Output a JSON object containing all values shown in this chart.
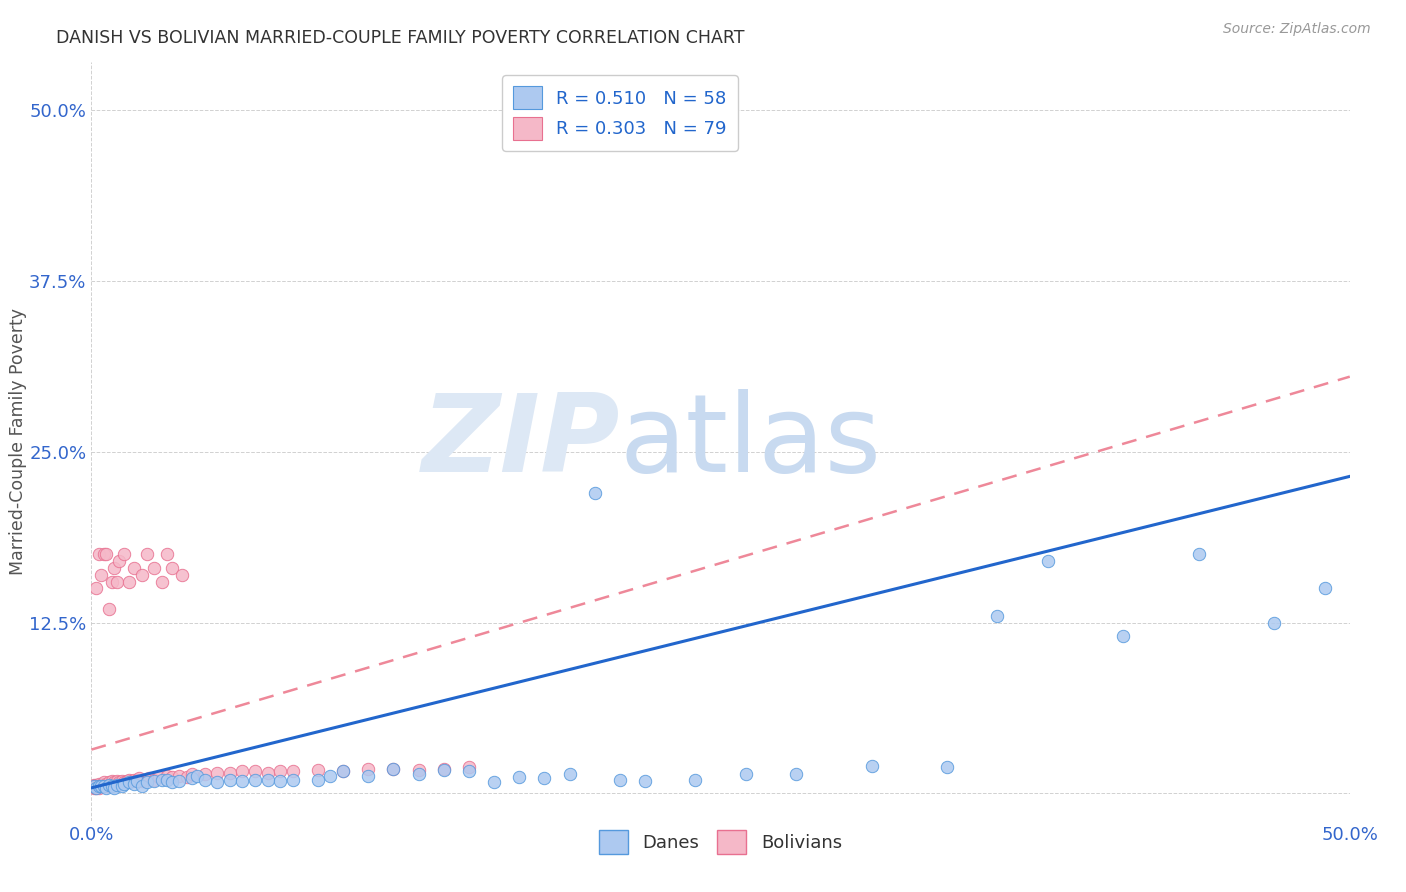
{
  "title": "DANISH VS BOLIVIAN MARRIED-COUPLE FAMILY POVERTY CORRELATION CHART",
  "source": "Source: ZipAtlas.com",
  "ylabel": "Married-Couple Family Poverty",
  "xlim": [
    0.0,
    0.5
  ],
  "ylim": [
    -0.02,
    0.535
  ],
  "danes_color": "#adc9f0",
  "bolivians_color": "#f5b8c8",
  "danes_edge_color": "#5599dd",
  "bolivians_edge_color": "#e87090",
  "danes_line_color": "#2266cc",
  "bolivians_line_color": "#ee8899",
  "background_color": "#ffffff",
  "title_color": "#333333",
  "tick_color": "#3366cc",
  "ylabel_color": "#555555",
  "watermark_zip_color": "#dde8f5",
  "watermark_atlas_color": "#c8daf0",
  "legend_label_color": "#2266cc",
  "legend_n_color": "#ee4466",
  "danes_line_start_y": 0.004,
  "danes_line_end_y": 0.232,
  "bolivians_line_start_y": 0.032,
  "bolivians_line_end_y": 0.305,
  "danes_x": [
    0.001,
    0.002,
    0.003,
    0.004,
    0.005,
    0.006,
    0.007,
    0.008,
    0.009,
    0.01,
    0.012,
    0.013,
    0.015,
    0.017,
    0.018,
    0.02,
    0.022,
    0.025,
    0.028,
    0.03,
    0.032,
    0.035,
    0.04,
    0.042,
    0.045,
    0.05,
    0.055,
    0.06,
    0.065,
    0.07,
    0.075,
    0.08,
    0.09,
    0.095,
    0.1,
    0.11,
    0.12,
    0.13,
    0.14,
    0.15,
    0.16,
    0.17,
    0.18,
    0.19,
    0.2,
    0.21,
    0.22,
    0.24,
    0.26,
    0.28,
    0.31,
    0.34,
    0.36,
    0.38,
    0.41,
    0.44,
    0.47,
    0.49
  ],
  "danes_y": [
    0.005,
    0.004,
    0.005,
    0.005,
    0.005,
    0.004,
    0.006,
    0.005,
    0.004,
    0.006,
    0.005,
    0.007,
    0.008,
    0.007,
    0.009,
    0.005,
    0.008,
    0.009,
    0.01,
    0.01,
    0.008,
    0.009,
    0.011,
    0.013,
    0.01,
    0.008,
    0.01,
    0.009,
    0.01,
    0.01,
    0.009,
    0.01,
    0.01,
    0.013,
    0.016,
    0.013,
    0.018,
    0.014,
    0.017,
    0.016,
    0.008,
    0.012,
    0.011,
    0.014,
    0.22,
    0.01,
    0.009,
    0.01,
    0.014,
    0.014,
    0.02,
    0.019,
    0.13,
    0.17,
    0.115,
    0.175,
    0.125,
    0.15
  ],
  "bolivians_x": [
    0.001,
    0.001,
    0.001,
    0.002,
    0.002,
    0.002,
    0.003,
    0.003,
    0.003,
    0.004,
    0.004,
    0.005,
    0.005,
    0.005,
    0.006,
    0.006,
    0.007,
    0.007,
    0.008,
    0.008,
    0.009,
    0.009,
    0.01,
    0.01,
    0.011,
    0.012,
    0.013,
    0.014,
    0.015,
    0.016,
    0.017,
    0.018,
    0.019,
    0.02,
    0.022,
    0.023,
    0.025,
    0.027,
    0.03,
    0.032,
    0.035,
    0.038,
    0.04,
    0.045,
    0.05,
    0.055,
    0.06,
    0.065,
    0.07,
    0.075,
    0.08,
    0.09,
    0.1,
    0.11,
    0.12,
    0.13,
    0.14,
    0.15,
    0.002,
    0.003,
    0.004,
    0.005,
    0.006,
    0.007,
    0.008,
    0.009,
    0.01,
    0.011,
    0.013,
    0.015,
    0.017,
    0.02,
    0.022,
    0.025,
    0.028,
    0.03,
    0.032,
    0.036
  ],
  "bolivians_y": [
    0.004,
    0.005,
    0.006,
    0.004,
    0.005,
    0.006,
    0.004,
    0.005,
    0.007,
    0.005,
    0.006,
    0.005,
    0.007,
    0.008,
    0.005,
    0.007,
    0.006,
    0.008,
    0.007,
    0.009,
    0.007,
    0.008,
    0.006,
    0.009,
    0.008,
    0.009,
    0.008,
    0.009,
    0.01,
    0.009,
    0.01,
    0.01,
    0.011,
    0.009,
    0.01,
    0.011,
    0.01,
    0.012,
    0.013,
    0.012,
    0.013,
    0.012,
    0.014,
    0.014,
    0.015,
    0.015,
    0.016,
    0.016,
    0.015,
    0.016,
    0.016,
    0.017,
    0.016,
    0.018,
    0.018,
    0.017,
    0.018,
    0.019,
    0.15,
    0.175,
    0.16,
    0.175,
    0.175,
    0.135,
    0.155,
    0.165,
    0.155,
    0.17,
    0.175,
    0.155,
    0.165,
    0.16,
    0.175,
    0.165,
    0.155,
    0.175,
    0.165,
    0.16
  ]
}
